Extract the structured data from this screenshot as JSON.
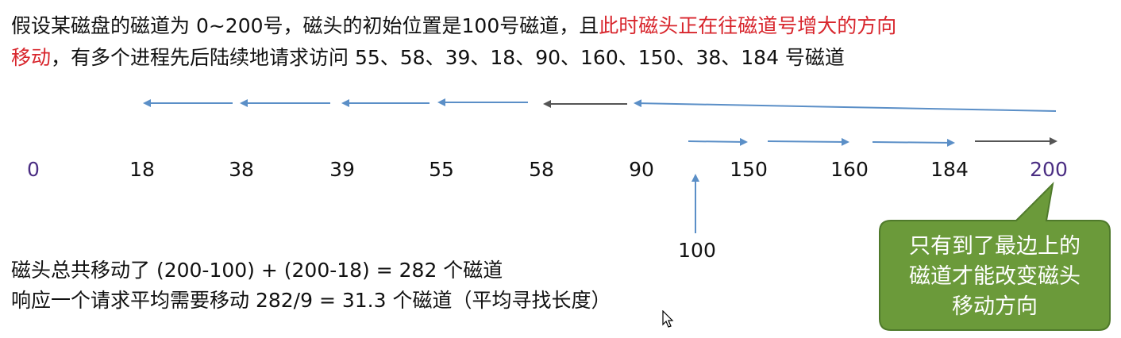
{
  "problem": {
    "line1_plain": "假设某磁盘的磁道为 0~200号，磁头的初始位置是100号磁道，且",
    "line1_red": "此时磁头正在往磁道号增大的方向",
    "line2_red": "移动",
    "line2_plain": "，有多个进程先后陆续地请求访问 55、58、39、18、90、160、150、38、184 号磁道"
  },
  "track_labels": [
    "0",
    "18",
    "38",
    "39",
    "55",
    "58",
    "90",
    "150",
    "160",
    "184",
    "200"
  ],
  "start_label": "100",
  "summary": {
    "line1": "磁头总共移动了  (200-100) + (200-18) = 282 个磁道",
    "line2": "响应一个请求平均需要移动 282/9 = 31.3 个磁道（平均寻找长度）"
  },
  "callout": {
    "line1": "只有到了最边上的",
    "line2": "磁道才能改变磁头",
    "line3": "移动方向"
  },
  "colors": {
    "accent_red": "#d8262d",
    "endpoint_purple": "#4b2e83",
    "arrow_blue": "#5b8fc7",
    "arrow_gray": "#555555",
    "callout_fill": "#6b9a3a",
    "callout_border": "#4f7a2b"
  }
}
